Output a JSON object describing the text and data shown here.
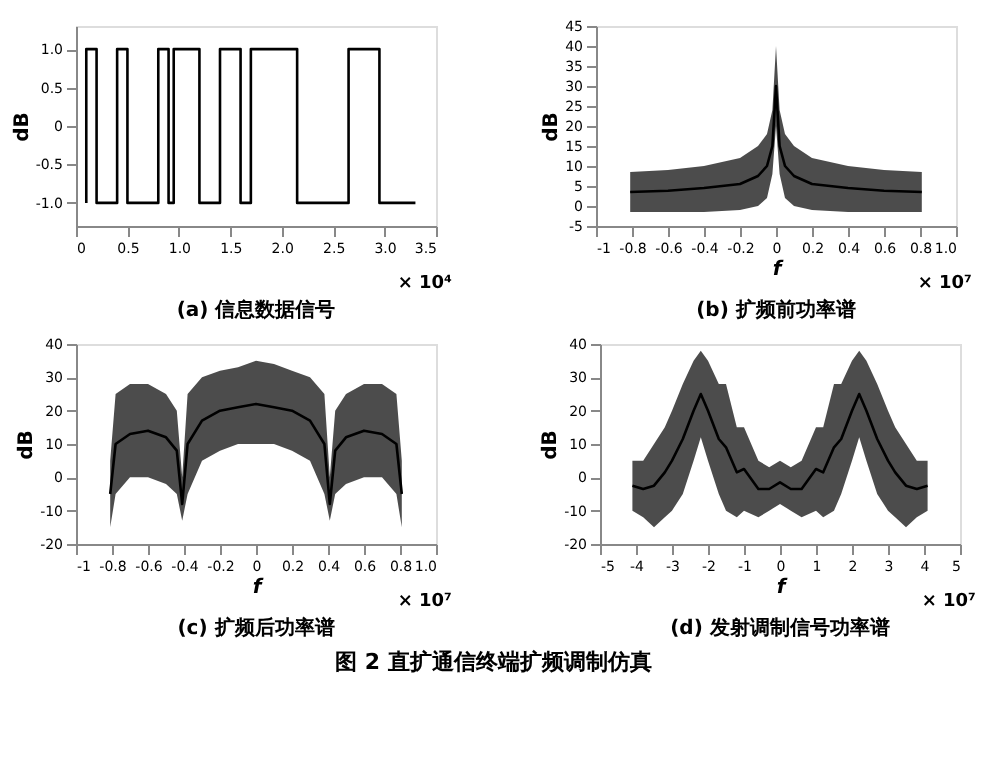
{
  "chart_data": [
    {
      "type": "step",
      "title": "(a) 信息数据信号",
      "ylabel": "dB",
      "annotations": [
        "× 10⁴",
        "图 2   直扩通信终端扩频调制仿真"
      ],
      "x": [
        0.1,
        0.1,
        0.2,
        0.4,
        0.5,
        0.8,
        0.9,
        0.95,
        1.2,
        1.4,
        1.6,
        1.7,
        2.15,
        2.65,
        2.95,
        3.3
      ],
      "values": [
        -1,
        1,
        -1,
        1,
        -1,
        1,
        -1,
        1,
        -1,
        1,
        -1,
        1,
        -1,
        1,
        -1,
        -1
      ],
      "color": "#000000",
      "xlim": [
        0,
        3.5
      ],
      "xticks": [
        0,
        0.5,
        {
          "value": 1,
          "label": "1.0"
        },
        1.5,
        {
          "value": 2,
          "label": "2.0"
        },
        2.5,
        {
          "value": 3,
          "label": "3.0"
        },
        3.5
      ],
      "ylim": [
        -1.3,
        1.3
      ],
      "yticks": [
        {
          "value": -1,
          "label": "-1.0"
        },
        -0.5,
        0,
        0.5,
        {
          "value": 1,
          "label": "1.0"
        }
      ],
      "grid": false
    },
    {
      "type": "line",
      "title": "(b) 扩频前功率谱",
      "xlabel": "f",
      "ylabel": "dB",
      "annotations": [
        "× 10⁷"
      ],
      "series": [
        {
          "color": "#000000",
          "x": [
            -0.81,
            -0.6,
            -0.4,
            -0.2,
            -0.1,
            -0.05,
            -0.02,
            0,
            0.02,
            0.05,
            0.1,
            0.2,
            0.4,
            0.6,
            0.81
          ],
          "values": [
            3.5,
            3.8,
            4.5,
            5.5,
            7.5,
            10,
            15,
            30,
            15,
            10,
            7.5,
            5.5,
            4.5,
            3.8,
            3.5
          ],
          "lower": [
            -1.5,
            -1.5,
            -1.5,
            -1,
            0,
            2,
            8,
            20,
            8,
            2,
            0,
            -1,
            -1.5,
            -1.5,
            -1.5
          ],
          "upper": [
            8.5,
            9,
            10,
            12,
            15,
            18,
            24,
            40,
            24,
            18,
            15,
            12,
            10,
            9,
            8.5
          ]
        }
      ],
      "xlim": [
        -1,
        1
      ],
      "xticks": [
        -1,
        -0.8,
        -0.6,
        -0.4,
        -0.2,
        0,
        0.2,
        0.4,
        0.6,
        0.8,
        {
          "value": 1,
          "label": "1.0"
        }
      ],
      "ylim": [
        -5,
        45
      ],
      "yticks": [
        -5,
        0,
        5,
        10,
        15,
        20,
        25,
        30,
        35,
        40,
        45
      ],
      "grid": false
    },
    {
      "type": "line",
      "title": "(c) 扩频后功率谱",
      "xlabel": "f",
      "ylabel": "dB",
      "annotations": [
        "× 10⁷"
      ],
      "series": [
        {
          "color": "#000000",
          "x": [
            -0.81,
            -0.78,
            -0.7,
            -0.6,
            -0.5,
            -0.44,
            -0.41,
            -0.38,
            -0.3,
            -0.2,
            -0.1,
            0,
            0.1,
            0.2,
            0.3,
            0.38,
            0.41,
            0.44,
            0.5,
            0.6,
            0.7,
            0.78,
            0.81
          ],
          "values": [
            -5,
            10,
            13,
            14,
            12,
            8,
            -8,
            10,
            17,
            20,
            21,
            22,
            21,
            20,
            17,
            10,
            -8,
            8,
            12,
            14,
            13,
            10,
            -5
          ],
          "lower": [
            -15,
            -5,
            0,
            0,
            -2,
            -5,
            -13,
            -5,
            5,
            8,
            10,
            10,
            10,
            8,
            5,
            -5,
            -13,
            -5,
            -2,
            0,
            0,
            -5,
            -15
          ],
          "upper": [
            5,
            25,
            28,
            28,
            25,
            20,
            0,
            25,
            30,
            32,
            33,
            35,
            34,
            32,
            30,
            25,
            0,
            20,
            25,
            28,
            28,
            25,
            5
          ]
        }
      ],
      "xlim": [
        -1,
        1
      ],
      "xticks": [
        -1,
        -0.8,
        -0.6,
        -0.4,
        -0.2,
        0,
        0.2,
        0.4,
        0.6,
        0.8,
        {
          "value": 1,
          "label": "1.0"
        }
      ],
      "ylim": [
        -20,
        40
      ],
      "yticks": [
        -20,
        -10,
        0,
        10,
        20,
        30,
        40
      ],
      "grid": false
    },
    {
      "type": "line",
      "title": "(d) 发射调制信号功率谱",
      "xlabel": "f",
      "ylabel": "dB",
      "annotations": [
        "× 10⁷"
      ],
      "series": [
        {
          "color": "#000000",
          "x": [
            -4.1,
            -3.8,
            -3.5,
            -3.2,
            -3,
            -2.7,
            -2.4,
            -2.2,
            -2,
            -1.7,
            -1.5,
            -1.2,
            -1,
            -0.6,
            -0.3,
            0,
            0.3,
            0.6,
            1,
            1.2,
            1.5,
            1.7,
            2,
            2.2,
            2.4,
            2.7,
            3,
            3.2,
            3.5,
            3.8,
            4.1
          ],
          "values": [
            -2.5,
            -3.5,
            -2.5,
            1.5,
            5,
            11.5,
            20,
            25,
            20,
            11.5,
            9,
            1.5,
            2.5,
            -3.5,
            -3.5,
            -1.5,
            -3.5,
            -3.5,
            2.5,
            1.5,
            9,
            11.5,
            20,
            25,
            20,
            11.5,
            5,
            1.5,
            -2.5,
            -3.5,
            -2.5
          ],
          "lower": [
            -10,
            -12,
            -15,
            -12,
            -10,
            -5,
            5,
            12,
            5,
            -5,
            -10,
            -12,
            -10,
            -12,
            -10,
            -8,
            -10,
            -12,
            -10,
            -12,
            -10,
            -5,
            5,
            12,
            5,
            -5,
            -10,
            -12,
            -15,
            -12,
            -10
          ],
          "upper": [
            5,
            5,
            10,
            15,
            20,
            28,
            35,
            38,
            35,
            28,
            28,
            15,
            15,
            5,
            3,
            5,
            3,
            5,
            15,
            15,
            28,
            28,
            35,
            38,
            35,
            28,
            20,
            15,
            10,
            5,
            5
          ]
        }
      ],
      "xlim": [
        -5,
        5
      ],
      "xticks": [
        -5,
        -4,
        -3,
        -2,
        -1,
        0,
        1,
        2,
        3,
        4,
        5
      ],
      "ylim": [
        -20,
        40
      ],
      "yticks": [
        -20,
        -10,
        0,
        10,
        20,
        30,
        40
      ],
      "grid": false
    }
  ]
}
